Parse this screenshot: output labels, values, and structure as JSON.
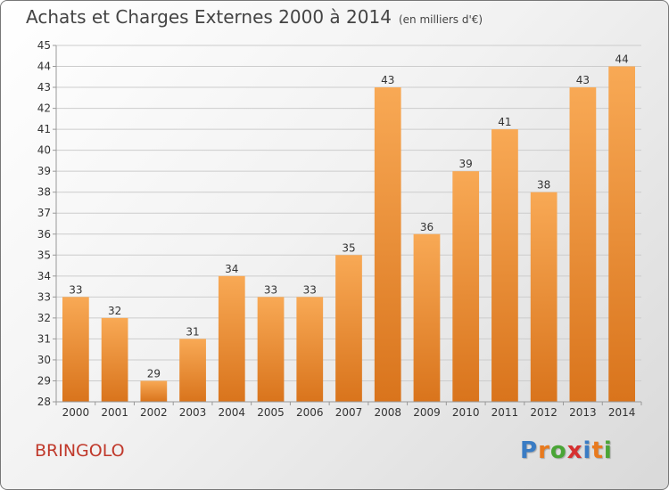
{
  "title": "Achats et Charges Externes 2000 à 2014",
  "unit": "(en milliers d'€)",
  "commune": "BRINGOLO",
  "logo": {
    "text": "Proxiti",
    "letters": [
      "P",
      "r",
      "o",
      "x",
      "i",
      "t",
      "i"
    ],
    "colors": [
      "#3a7cc4",
      "#e87a1e",
      "#4aa536",
      "#d62f2f",
      "#3a7cc4",
      "#e87a1e",
      "#4aa536"
    ]
  },
  "colors": {
    "bar_light": "#f8a955",
    "bar_dark": "#d9741c",
    "grid": "#cccccc",
    "axis_text": "#333333",
    "title_text": "#444444",
    "commune_text": "#c0392b"
  },
  "chart_data": {
    "type": "bar",
    "title": "Achats et Charges Externes 2000 à 2014",
    "subtitle": "(en milliers d'€)",
    "xlabel": "",
    "ylabel": "",
    "categories": [
      "2000",
      "2001",
      "2002",
      "2003",
      "2004",
      "2005",
      "2006",
      "2007",
      "2008",
      "2009",
      "2010",
      "2011",
      "2012",
      "2013",
      "2014"
    ],
    "values": [
      33,
      32,
      29,
      31,
      34,
      33,
      33,
      35,
      43,
      36,
      39,
      41,
      38,
      43,
      44
    ],
    "ylim": [
      28,
      45
    ],
    "yticks": [
      28,
      29,
      30,
      31,
      32,
      33,
      34,
      35,
      36,
      37,
      38,
      39,
      40,
      41,
      42,
      43,
      44,
      45
    ],
    "grid": true,
    "data_labels": true
  }
}
